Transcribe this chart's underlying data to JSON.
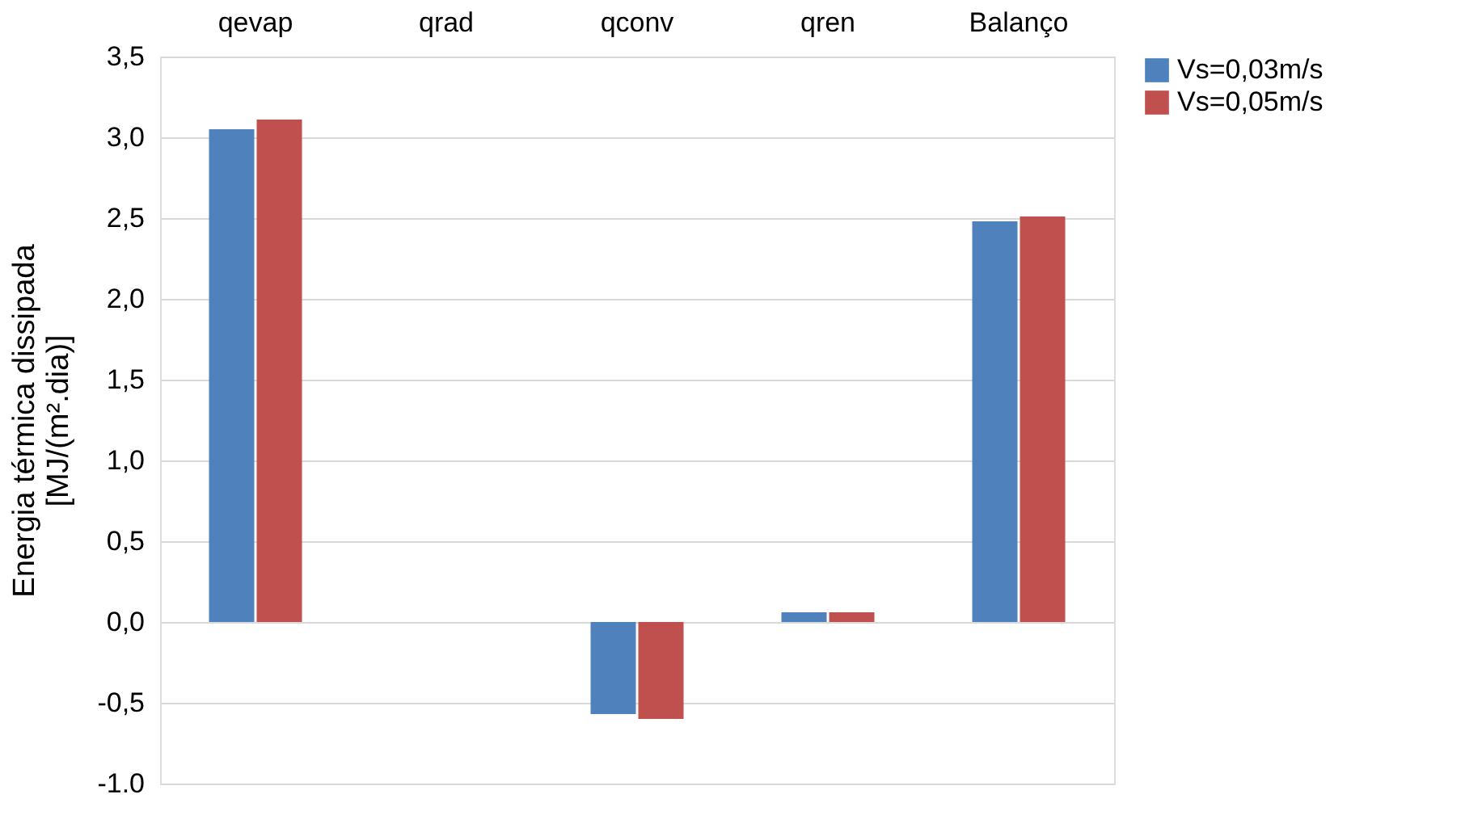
{
  "chart_data": {
    "type": "bar",
    "ylabel": "Energia térmica dissipada\n[MJ/(m².dia)]",
    "categories": [
      "qevap",
      "qrad",
      "qconv",
      "qren",
      "Balanço"
    ],
    "series": [
      {
        "name": "Vs=0,03m/s",
        "color": "#4f81bd",
        "values": [
          3.05,
          0,
          -0.57,
          0.06,
          2.48
        ]
      },
      {
        "name": "Vs=0,05m/s",
        "color": "#c0504d",
        "values": [
          3.11,
          0,
          -0.6,
          0.06,
          2.51
        ]
      }
    ],
    "ylim": [
      -1,
      3.5
    ],
    "yticks": [
      {
        "value": -1,
        "label": "-1.0"
      },
      {
        "value": -0.5,
        "label": "-0,5"
      },
      {
        "value": 0,
        "label": "0,0"
      },
      {
        "value": 0.5,
        "label": "0,5"
      },
      {
        "value": 1,
        "label": "1,0"
      },
      {
        "value": 1.5,
        "label": "1,5"
      },
      {
        "value": 2,
        "label": "2,0"
      },
      {
        "value": 2.5,
        "label": "2,5"
      },
      {
        "value": 3,
        "label": "3,0"
      },
      {
        "value": 3.5,
        "label": "3,5"
      }
    ],
    "grid": "y",
    "legend": "right"
  }
}
